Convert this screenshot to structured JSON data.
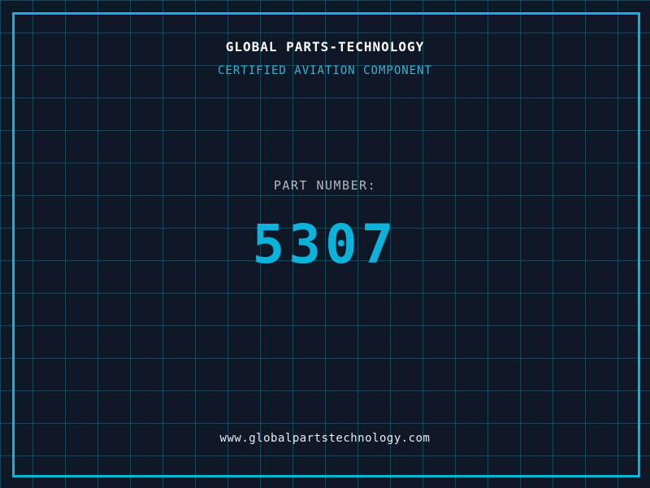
{
  "theme": {
    "background": "#0f1827",
    "grid_line": "#17495e",
    "frame": "#10b2dc",
    "title_color": "#ffffff",
    "subtitle_color": "#3ab0d2",
    "label_color": "#aebac4",
    "number_color": "#0cb2da",
    "url_color": "#e8ecee"
  },
  "header": {
    "title": "GLOBAL PARTS-TECHNOLOGY",
    "subtitle": "CERTIFIED AVIATION COMPONENT"
  },
  "part": {
    "label": "PART NUMBER:",
    "number": "5307"
  },
  "footer": {
    "url": "www.globalpartstechnology.com"
  }
}
